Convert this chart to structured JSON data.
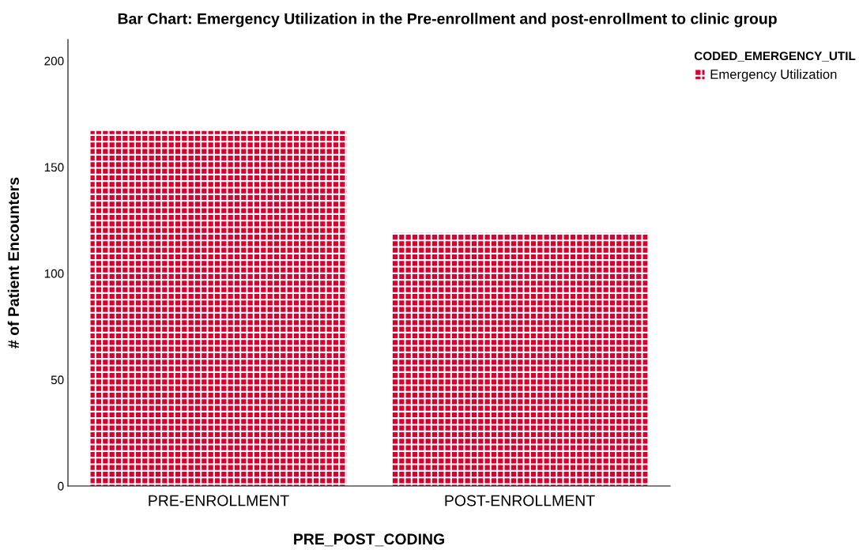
{
  "chart_data": {
    "type": "bar",
    "title": "Bar Chart: Emergency Utilization in the Pre-enrollment and post-enrollment to clinic group",
    "xlabel": "PRE_POST_CODING",
    "ylabel": "# of Patient Encounters",
    "legend_title": "CODED_EMERGENCY_UTIL",
    "categories": [
      "PRE-ENROLLMENT",
      "POST-ENROLLMENT"
    ],
    "series": [
      {
        "name": "Emergency Utilization",
        "color": "#d6002f",
        "values": [
          167,
          119
        ]
      }
    ],
    "ylim": [
      0,
      210
    ],
    "yticks": [
      0,
      50,
      100,
      150,
      200
    ],
    "grid": false,
    "legend": "top right"
  }
}
